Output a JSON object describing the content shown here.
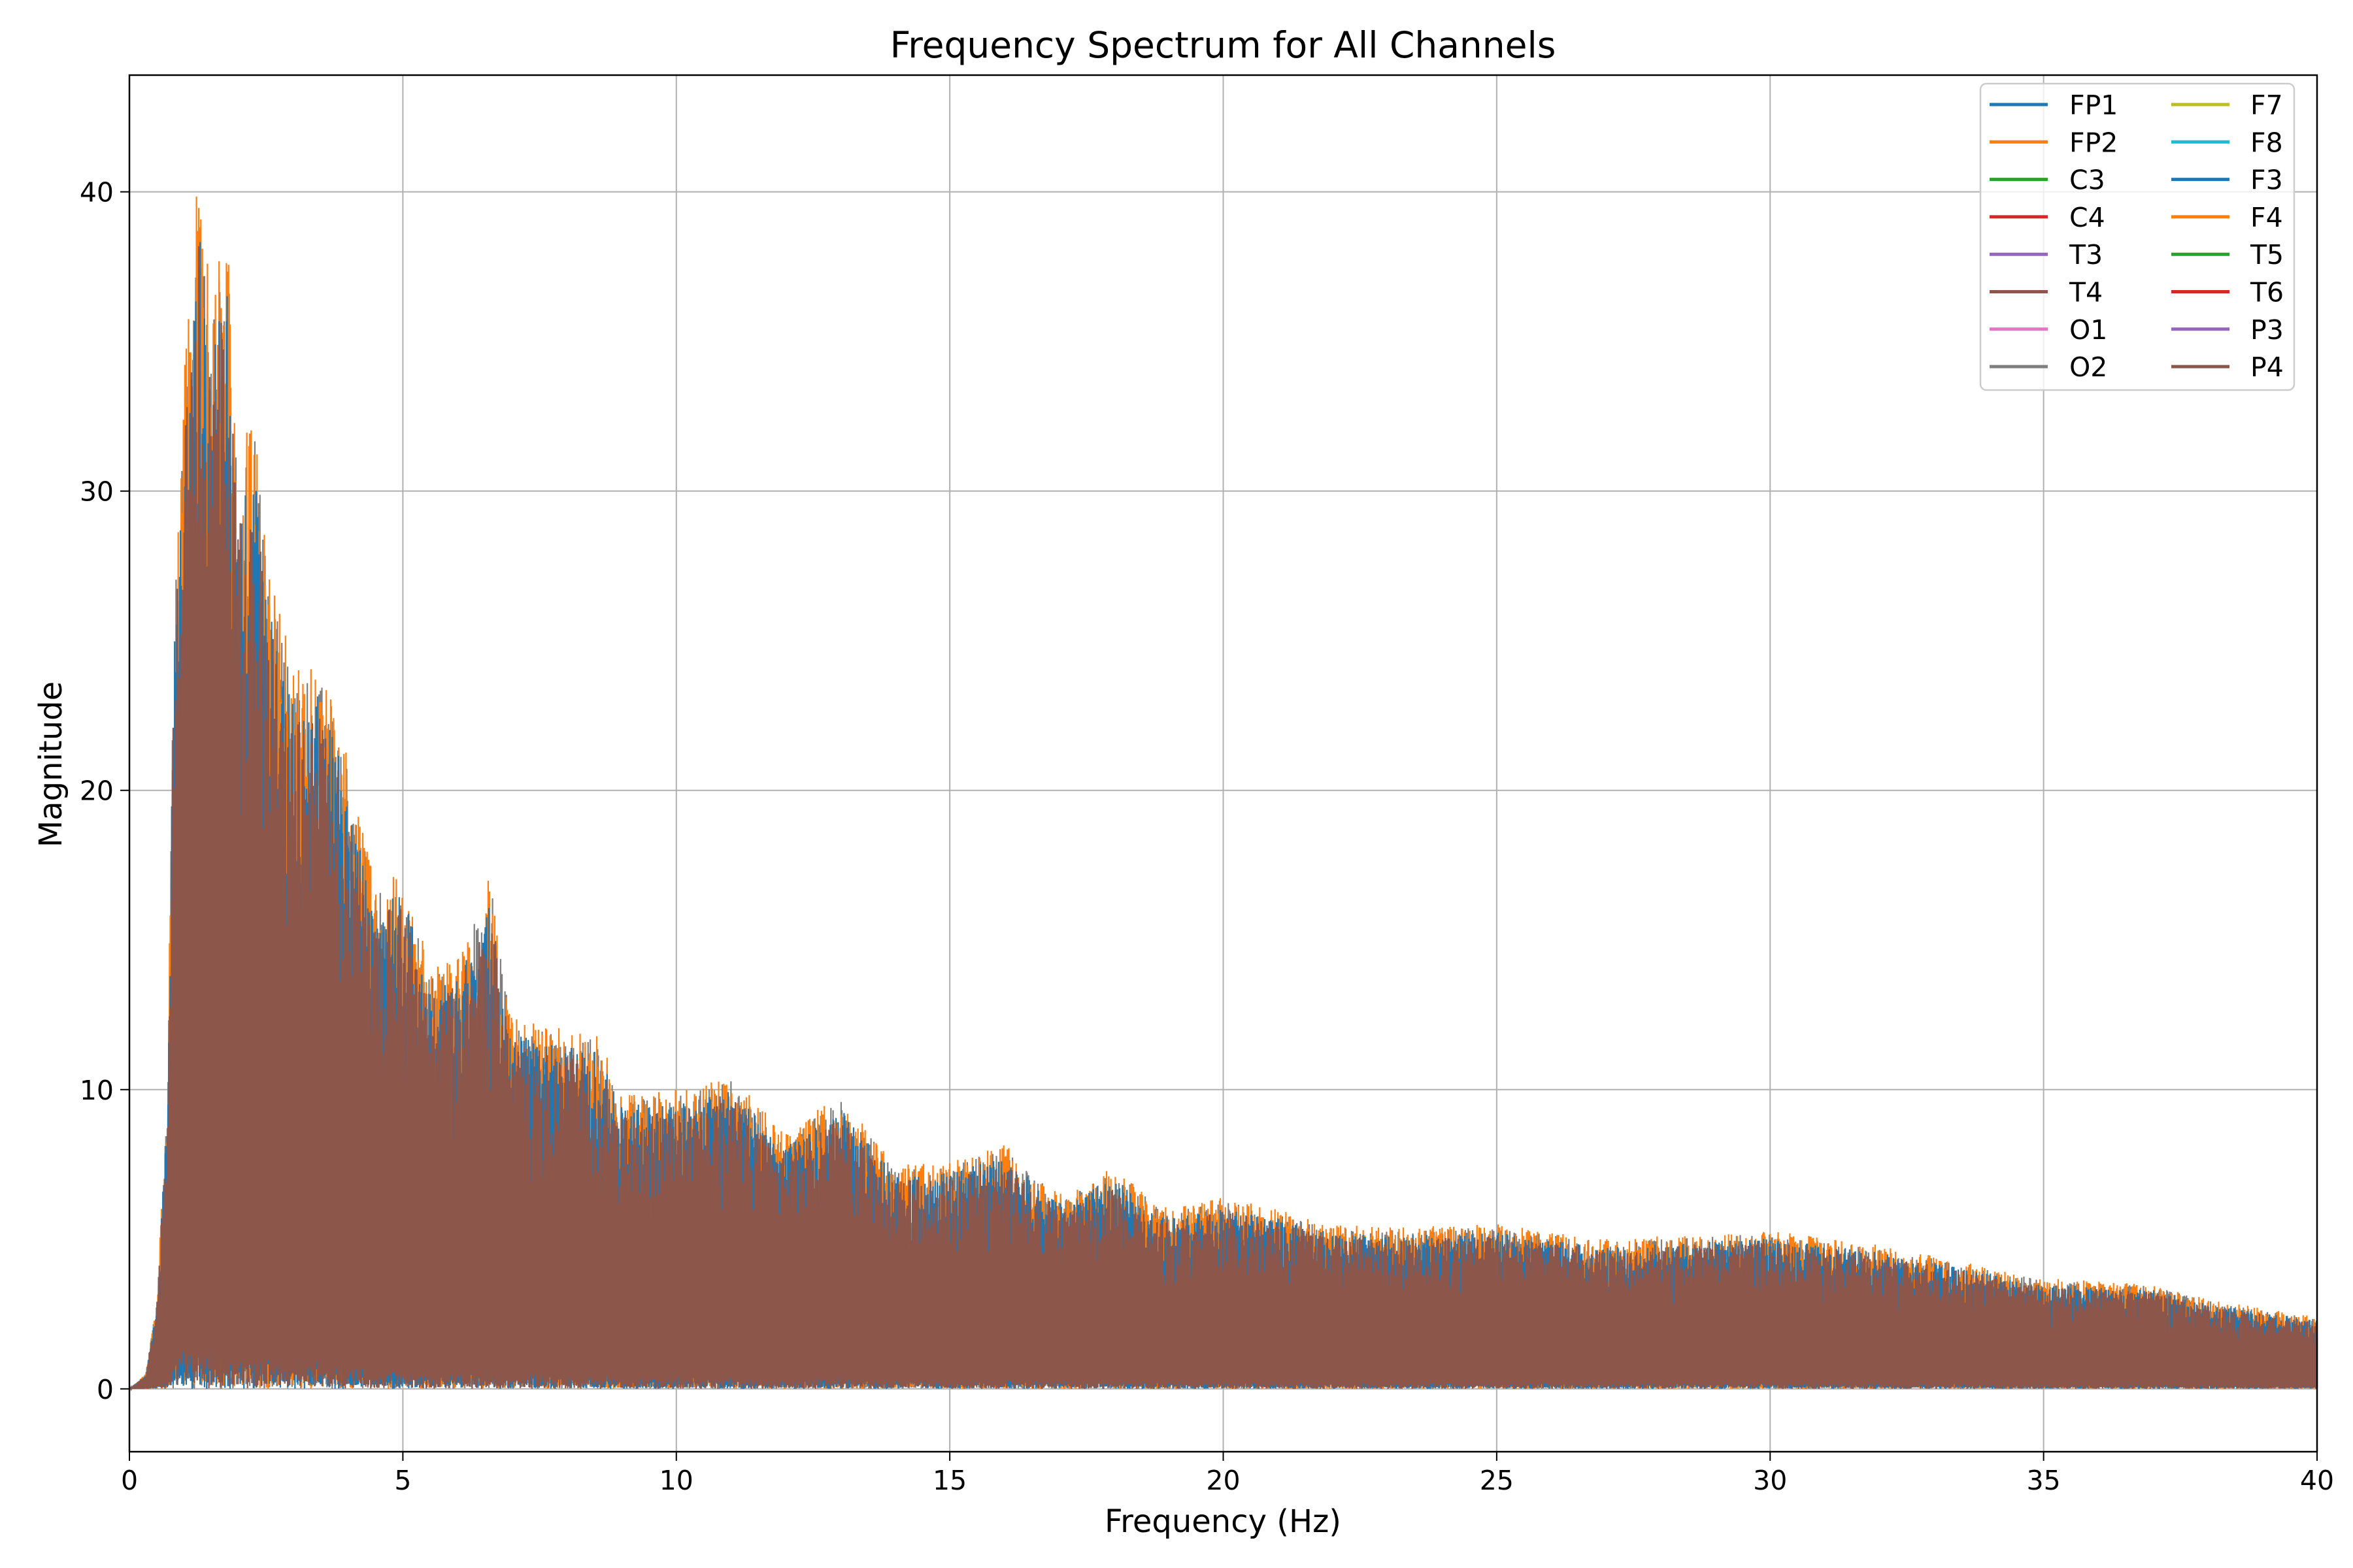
{
  "chart_data": {
    "type": "line",
    "title": "Frequency Spectrum for All Channels",
    "xlabel": "Frequency (Hz)",
    "ylabel": "Magnitude",
    "xlim": [
      0,
      40
    ],
    "ylim": [
      -2.1,
      43.9
    ],
    "xticks": [
      0,
      5,
      10,
      15,
      20,
      25,
      30,
      35,
      40
    ],
    "yticks": [
      0,
      10,
      20,
      30,
      40
    ],
    "grid": true,
    "legend_placement": "top-right",
    "legend_columns": 2,
    "series": [
      {
        "name": "FP1",
        "color": "#1f77b4"
      },
      {
        "name": "FP2",
        "color": "#ff7f0e"
      },
      {
        "name": "C3",
        "color": "#2ca02c"
      },
      {
        "name": "C4",
        "color": "#d62728"
      },
      {
        "name": "T3",
        "color": "#9467bd"
      },
      {
        "name": "T4",
        "color": "#8c564b"
      },
      {
        "name": "O1",
        "color": "#e377c2"
      },
      {
        "name": "O2",
        "color": "#7f7f7f"
      },
      {
        "name": "F7",
        "color": "#bcbd22"
      },
      {
        "name": "F8",
        "color": "#17becf"
      },
      {
        "name": "F3",
        "color": "#1f77b4"
      },
      {
        "name": "F4",
        "color": "#ff7f0e"
      },
      {
        "name": "T5",
        "color": "#2ca02c"
      },
      {
        "name": "T6",
        "color": "#d62728"
      },
      {
        "name": "P3",
        "color": "#9467bd"
      },
      {
        "name": "P4",
        "color": "#8c564b"
      }
    ],
    "peak_envelope": {
      "x": [
        0,
        0.3,
        0.5,
        0.7,
        0.8,
        1.0,
        1.2,
        1.25,
        1.5,
        1.7,
        1.8,
        2.0,
        2.3,
        2.5,
        3.0,
        3.5,
        4.0,
        4.5,
        5.0,
        5.5,
        6.0,
        6.6,
        7.0,
        8.0,
        8.5,
        9.0,
        10,
        11,
        12,
        13,
        14,
        15,
        16,
        17,
        18,
        19,
        20,
        21,
        22,
        23,
        25,
        27,
        30,
        32,
        35,
        37,
        38,
        40
      ],
      "y": [
        0,
        0.5,
        3,
        10,
        25,
        35,
        38,
        41.7,
        36,
        38.7,
        38.4,
        31,
        33,
        28,
        24,
        24.7,
        21,
        17,
        17.5,
        14,
        14.5,
        17.2,
        12.5,
        12,
        12,
        10,
        10,
        10.5,
        8.5,
        9.9,
        7.5,
        7.6,
        8.2,
        6.5,
        7.4,
        6,
        6.4,
        6,
        5.5,
        5.4,
        5.5,
        5,
        5.3,
        4.8,
        3.7,
        3.5,
        3,
        2.4
      ]
    }
  }
}
